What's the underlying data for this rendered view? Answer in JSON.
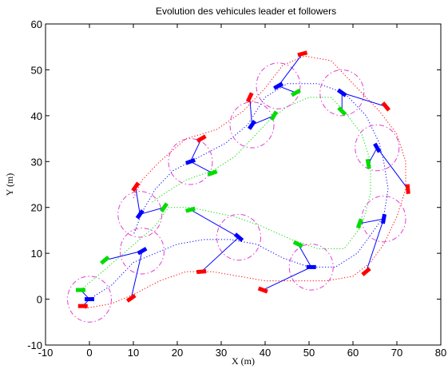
{
  "chart_data": {
    "type": "scatter",
    "title": "Evolution des vehicules leader et followers",
    "xlabel": "X (m)",
    "ylabel": "Y (m)",
    "xlim": [
      -10,
      80
    ],
    "ylim": [
      -10,
      60
    ],
    "xticks": [
      -10,
      0,
      10,
      20,
      30,
      40,
      50,
      60,
      70,
      80
    ],
    "yticks": [
      -10,
      0,
      10,
      20,
      30,
      40,
      50,
      60
    ],
    "grid": false,
    "colors": {
      "leader": "#0000ff",
      "follower_1": "#00dd00",
      "follower_2": "#ff0000",
      "formation_circle": "#e040d0",
      "box": "#000000"
    },
    "leader_path": [
      [
        0,
        0
      ],
      [
        5,
        3
      ],
      [
        10,
        8
      ],
      [
        15,
        10
      ],
      [
        20,
        12
      ],
      [
        26,
        13
      ],
      [
        32,
        13
      ],
      [
        38,
        12
      ],
      [
        44,
        9
      ],
      [
        50,
        7
      ],
      [
        56,
        7
      ],
      [
        61,
        10
      ],
      [
        64,
        14
      ],
      [
        67,
        18
      ],
      [
        68,
        24
      ],
      [
        67,
        30
      ],
      [
        66,
        34
      ],
      [
        63,
        40
      ],
      [
        58,
        45
      ],
      [
        52,
        47
      ],
      [
        45,
        47
      ],
      [
        40,
        44
      ],
      [
        36,
        38
      ],
      [
        31,
        34
      ],
      [
        25,
        31
      ],
      [
        19,
        28
      ],
      [
        15,
        24
      ],
      [
        12,
        19
      ],
      [
        10,
        14
      ]
    ],
    "follower1_path": [
      [
        -2,
        2
      ],
      [
        3,
        6
      ],
      [
        9,
        11
      ],
      [
        15,
        16
      ],
      [
        18,
        20
      ],
      [
        23,
        20
      ],
      [
        28,
        19
      ],
      [
        33,
        18
      ],
      [
        39,
        16
      ],
      [
        46,
        13
      ],
      [
        52,
        11
      ],
      [
        58,
        11
      ],
      [
        62,
        16
      ],
      [
        64,
        23
      ],
      [
        64,
        30
      ],
      [
        62,
        36
      ],
      [
        58,
        41
      ],
      [
        55,
        44
      ],
      [
        50,
        44
      ],
      [
        45,
        42
      ],
      [
        41,
        39
      ],
      [
        37,
        35
      ],
      [
        33,
        31
      ],
      [
        28,
        28
      ],
      [
        22,
        26
      ],
      [
        17,
        23
      ],
      [
        14,
        21
      ]
    ],
    "follower2_path": [
      [
        -1,
        -2
      ],
      [
        5,
        -1
      ],
      [
        10,
        1
      ],
      [
        16,
        4
      ],
      [
        22,
        6
      ],
      [
        28,
        6
      ],
      [
        34,
        5
      ],
      [
        40,
        4
      ],
      [
        46,
        4
      ],
      [
        54,
        4
      ],
      [
        60,
        5
      ],
      [
        64,
        8
      ],
      [
        67,
        12
      ],
      [
        70,
        18
      ],
      [
        72,
        24
      ],
      [
        72,
        30
      ],
      [
        70,
        36
      ],
      [
        66,
        41
      ],
      [
        60,
        47
      ],
      [
        55,
        52
      ],
      [
        49,
        53
      ],
      [
        44,
        51
      ],
      [
        40,
        46
      ],
      [
        35,
        41
      ],
      [
        29,
        37
      ],
      [
        22,
        35
      ],
      [
        16,
        30
      ],
      [
        12,
        26
      ],
      [
        10,
        22
      ]
    ],
    "formations": [
      {
        "center": [
          0,
          0
        ],
        "leader_angle": 0,
        "follower1": [
          -2,
          2
        ],
        "follower1_angle": 0,
        "follower2": [
          -1.5,
          -1.5
        ],
        "follower2_angle": 0
      },
      {
        "center": [
          12,
          10.5
        ],
        "leader_angle": 30,
        "follower1": [
          3.5,
          8.5
        ],
        "follower1_angle": 40,
        "follower2": [
          9.5,
          0.2
        ],
        "follower2_angle": 35
      },
      {
        "center": [
          11.5,
          18.5
        ],
        "leader_angle": 55,
        "follower1": [
          17,
          20
        ],
        "follower1_angle": 55,
        "follower2": [
          10.5,
          24.5
        ],
        "follower2_angle": 55
      },
      {
        "center": [
          23,
          30
        ],
        "leader_angle": 20,
        "follower1": [
          28,
          27.5
        ],
        "follower1_angle": 20,
        "follower2": [
          25.5,
          35
        ],
        "follower2_angle": 30
      },
      {
        "center": [
          34,
          13.5
        ],
        "leader_angle": -40,
        "follower1": [
          23,
          19.5
        ],
        "follower1_angle": 15,
        "follower2": [
          25.5,
          6
        ],
        "follower2_angle": 5
      },
      {
        "center": [
          37,
          38
        ],
        "leader_angle": 55,
        "follower1": [
          42,
          40
        ],
        "follower1_angle": 60,
        "follower2": [
          36.5,
          44
        ],
        "follower2_angle": 65
      },
      {
        "center": [
          43,
          46.5
        ],
        "leader_angle": 30,
        "follower1": [
          47,
          45
        ],
        "follower1_angle": 30,
        "follower2": [
          48.5,
          53.5
        ],
        "follower2_angle": 15
      },
      {
        "center": [
          50.5,
          7
        ],
        "leader_angle": 0,
        "follower1": [
          47.5,
          12
        ],
        "follower1_angle": -25,
        "follower2": [
          39.5,
          2
        ],
        "follower2_angle": -20
      },
      {
        "center": [
          57.5,
          45
        ],
        "leader_angle": -35,
        "follower1": [
          57.5,
          41
        ],
        "follower1_angle": -45,
        "follower2": [
          67.5,
          42
        ],
        "follower2_angle": -50
      },
      {
        "center": [
          65.5,
          33
        ],
        "leader_angle": -60,
        "follower1": [
          63.5,
          29.5
        ],
        "follower1_angle": -80,
        "follower2": [
          72.5,
          24
        ],
        "follower2_angle": -85
      },
      {
        "center": [
          67,
          17.5
        ],
        "leader_angle": 80,
        "follower1": [
          61.5,
          16.5
        ],
        "follower1_angle": 70,
        "follower2": [
          63,
          6
        ],
        "follower2_angle": 40
      }
    ],
    "formation_radius": 5
  }
}
